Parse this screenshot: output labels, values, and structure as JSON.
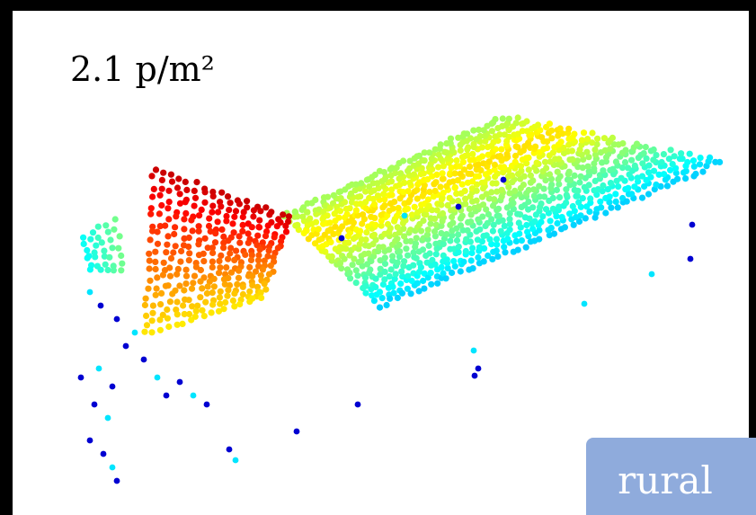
{
  "density": "2.1 p/m²",
  "label": "rural"
}
